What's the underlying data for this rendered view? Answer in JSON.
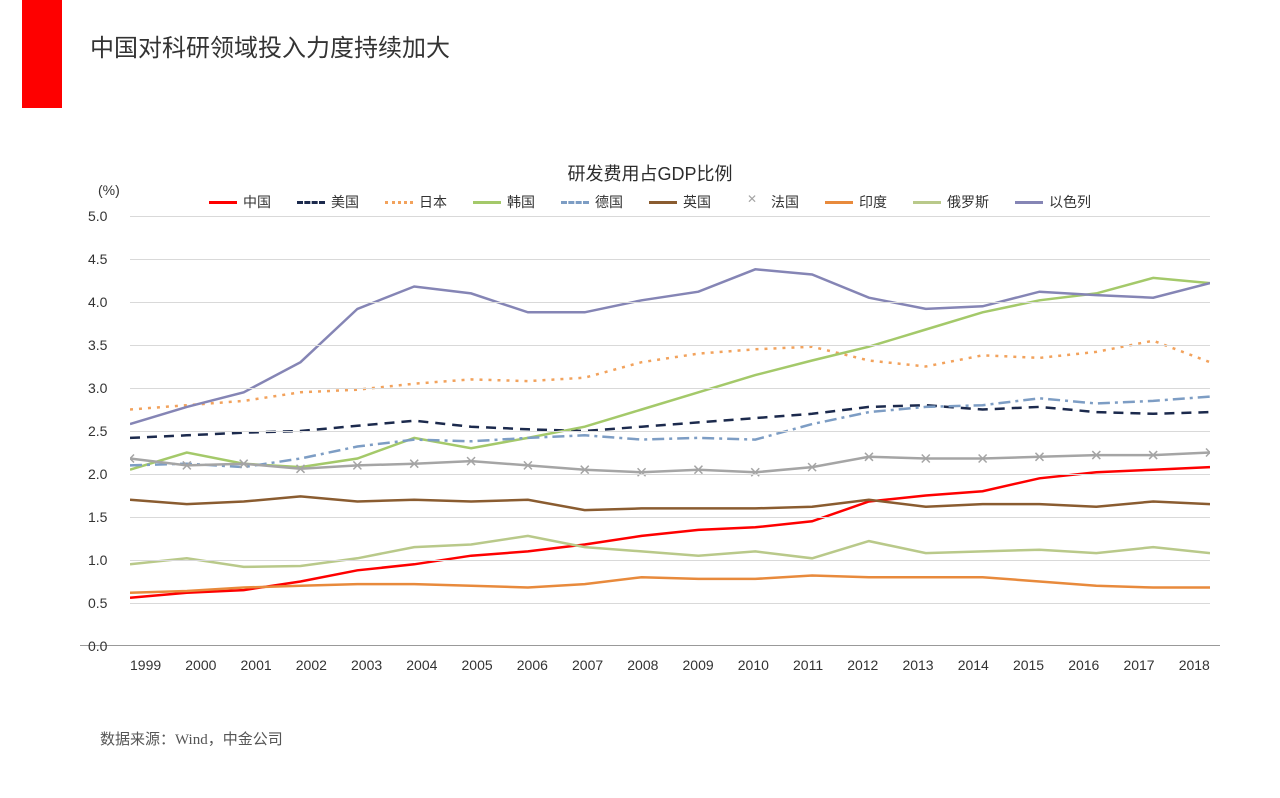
{
  "header": {
    "title": "中国对科研领域投入力度持续加大",
    "accent_color": "#fe0000"
  },
  "chart": {
    "type": "line",
    "title": "研发费用占GDP比例",
    "y_unit": "(%)",
    "ylim": [
      0,
      5.0
    ],
    "ytick_step": 0.5,
    "y_ticks": [
      "0.0",
      "0.5",
      "1.0",
      "1.5",
      "2.0",
      "2.5",
      "3.0",
      "3.5",
      "4.0",
      "4.5",
      "5.0"
    ],
    "x_labels": [
      "1999",
      "2000",
      "2001",
      "2002",
      "2003",
      "2004",
      "2005",
      "2006",
      "2007",
      "2008",
      "2009",
      "2010",
      "2011",
      "2012",
      "2013",
      "2014",
      "2015",
      "2016",
      "2017",
      "2018"
    ],
    "background_color": "#ffffff",
    "grid_color": "#d9d9d9",
    "axis_color": "#999999",
    "title_fontsize": 18,
    "tick_fontsize": 14,
    "line_width": 2.5,
    "series": [
      {
        "name": "中国",
        "label": "中国",
        "color": "#fe0000",
        "dash": "solid",
        "marker": "none",
        "values": [
          0.56,
          0.62,
          0.65,
          0.75,
          0.88,
          0.95,
          1.05,
          1.1,
          1.18,
          1.28,
          1.35,
          1.38,
          1.45,
          1.68,
          1.75,
          1.8,
          1.95,
          2.02,
          2.05,
          2.08
        ]
      },
      {
        "name": "美国",
        "label": "美国",
        "color": "#1c2a4d",
        "dash": "dashed",
        "marker": "none",
        "values": [
          2.42,
          2.45,
          2.48,
          2.5,
          2.56,
          2.62,
          2.55,
          2.52,
          2.5,
          2.55,
          2.6,
          2.65,
          2.7,
          2.78,
          2.8,
          2.75,
          2.78,
          2.72,
          2.7,
          2.72
        ]
      },
      {
        "name": "日本",
        "label": "日本",
        "color": "#f2a25c",
        "dash": "dotted",
        "marker": "none",
        "values": [
          2.75,
          2.8,
          2.85,
          2.95,
          2.98,
          3.05,
          3.1,
          3.08,
          3.12,
          3.3,
          3.4,
          3.45,
          3.48,
          3.32,
          3.25,
          3.38,
          3.35,
          3.42,
          3.55,
          3.3
        ]
      },
      {
        "name": "韩国",
        "label": "韩国",
        "color": "#a4c96a",
        "dash": "solid",
        "marker": "none",
        "values": [
          2.05,
          2.25,
          2.12,
          2.08,
          2.18,
          2.42,
          2.3,
          2.42,
          2.55,
          2.75,
          2.95,
          3.15,
          3.32,
          3.48,
          3.68,
          3.88,
          4.02,
          4.1,
          4.28,
          4.22
        ]
      },
      {
        "name": "德国",
        "label": "德国",
        "color": "#7d9dc4",
        "dash": "dashdot",
        "marker": "none",
        "values": [
          2.1,
          2.12,
          2.08,
          2.18,
          2.32,
          2.4,
          2.38,
          2.42,
          2.45,
          2.4,
          2.42,
          2.4,
          2.58,
          2.72,
          2.78,
          2.8,
          2.88,
          2.82,
          2.85,
          2.9
        ]
      },
      {
        "name": "英国",
        "label": "英国",
        "color": "#8a5c30",
        "dash": "solid",
        "marker": "none",
        "values": [
          1.7,
          1.65,
          1.68,
          1.74,
          1.68,
          1.7,
          1.68,
          1.7,
          1.58,
          1.6,
          1.6,
          1.6,
          1.62,
          1.7,
          1.62,
          1.65,
          1.65,
          1.62,
          1.68,
          1.65
        ]
      },
      {
        "name": "法国",
        "label": "法国",
        "color": "#a5a5a5",
        "dash": "xmark",
        "marker": "x",
        "values": [
          2.18,
          2.1,
          2.12,
          2.06,
          2.1,
          2.12,
          2.15,
          2.1,
          2.05,
          2.02,
          2.05,
          2.02,
          2.08,
          2.2,
          2.18,
          2.18,
          2.2,
          2.22,
          2.22,
          2.25
        ]
      },
      {
        "name": "印度",
        "label": "印度",
        "color": "#e88a3c",
        "dash": "solid",
        "marker": "none",
        "values": [
          0.62,
          0.64,
          0.68,
          0.7,
          0.72,
          0.72,
          0.7,
          0.68,
          0.72,
          0.8,
          0.78,
          0.78,
          0.82,
          0.8,
          0.8,
          0.8,
          0.75,
          0.7,
          0.68,
          0.68
        ]
      },
      {
        "name": "俄罗斯",
        "label": "俄罗斯",
        "color": "#b9c98a",
        "dash": "solid",
        "marker": "none",
        "values": [
          0.95,
          1.02,
          0.92,
          0.93,
          1.02,
          1.15,
          1.18,
          1.28,
          1.15,
          1.1,
          1.05,
          1.1,
          1.02,
          1.22,
          1.08,
          1.1,
          1.12,
          1.08,
          1.15,
          1.08
        ]
      },
      {
        "name": "以色列",
        "label": "以色列",
        "color": "#8585b5",
        "dash": "solid",
        "marker": "none",
        "values": [
          2.58,
          2.78,
          2.95,
          3.3,
          3.92,
          4.18,
          4.1,
          3.88,
          3.88,
          4.02,
          4.12,
          4.38,
          4.32,
          4.05,
          3.92,
          3.95,
          4.12,
          4.08,
          4.05,
          4.22
        ]
      }
    ]
  },
  "source": "数据来源：Wind，中金公司"
}
